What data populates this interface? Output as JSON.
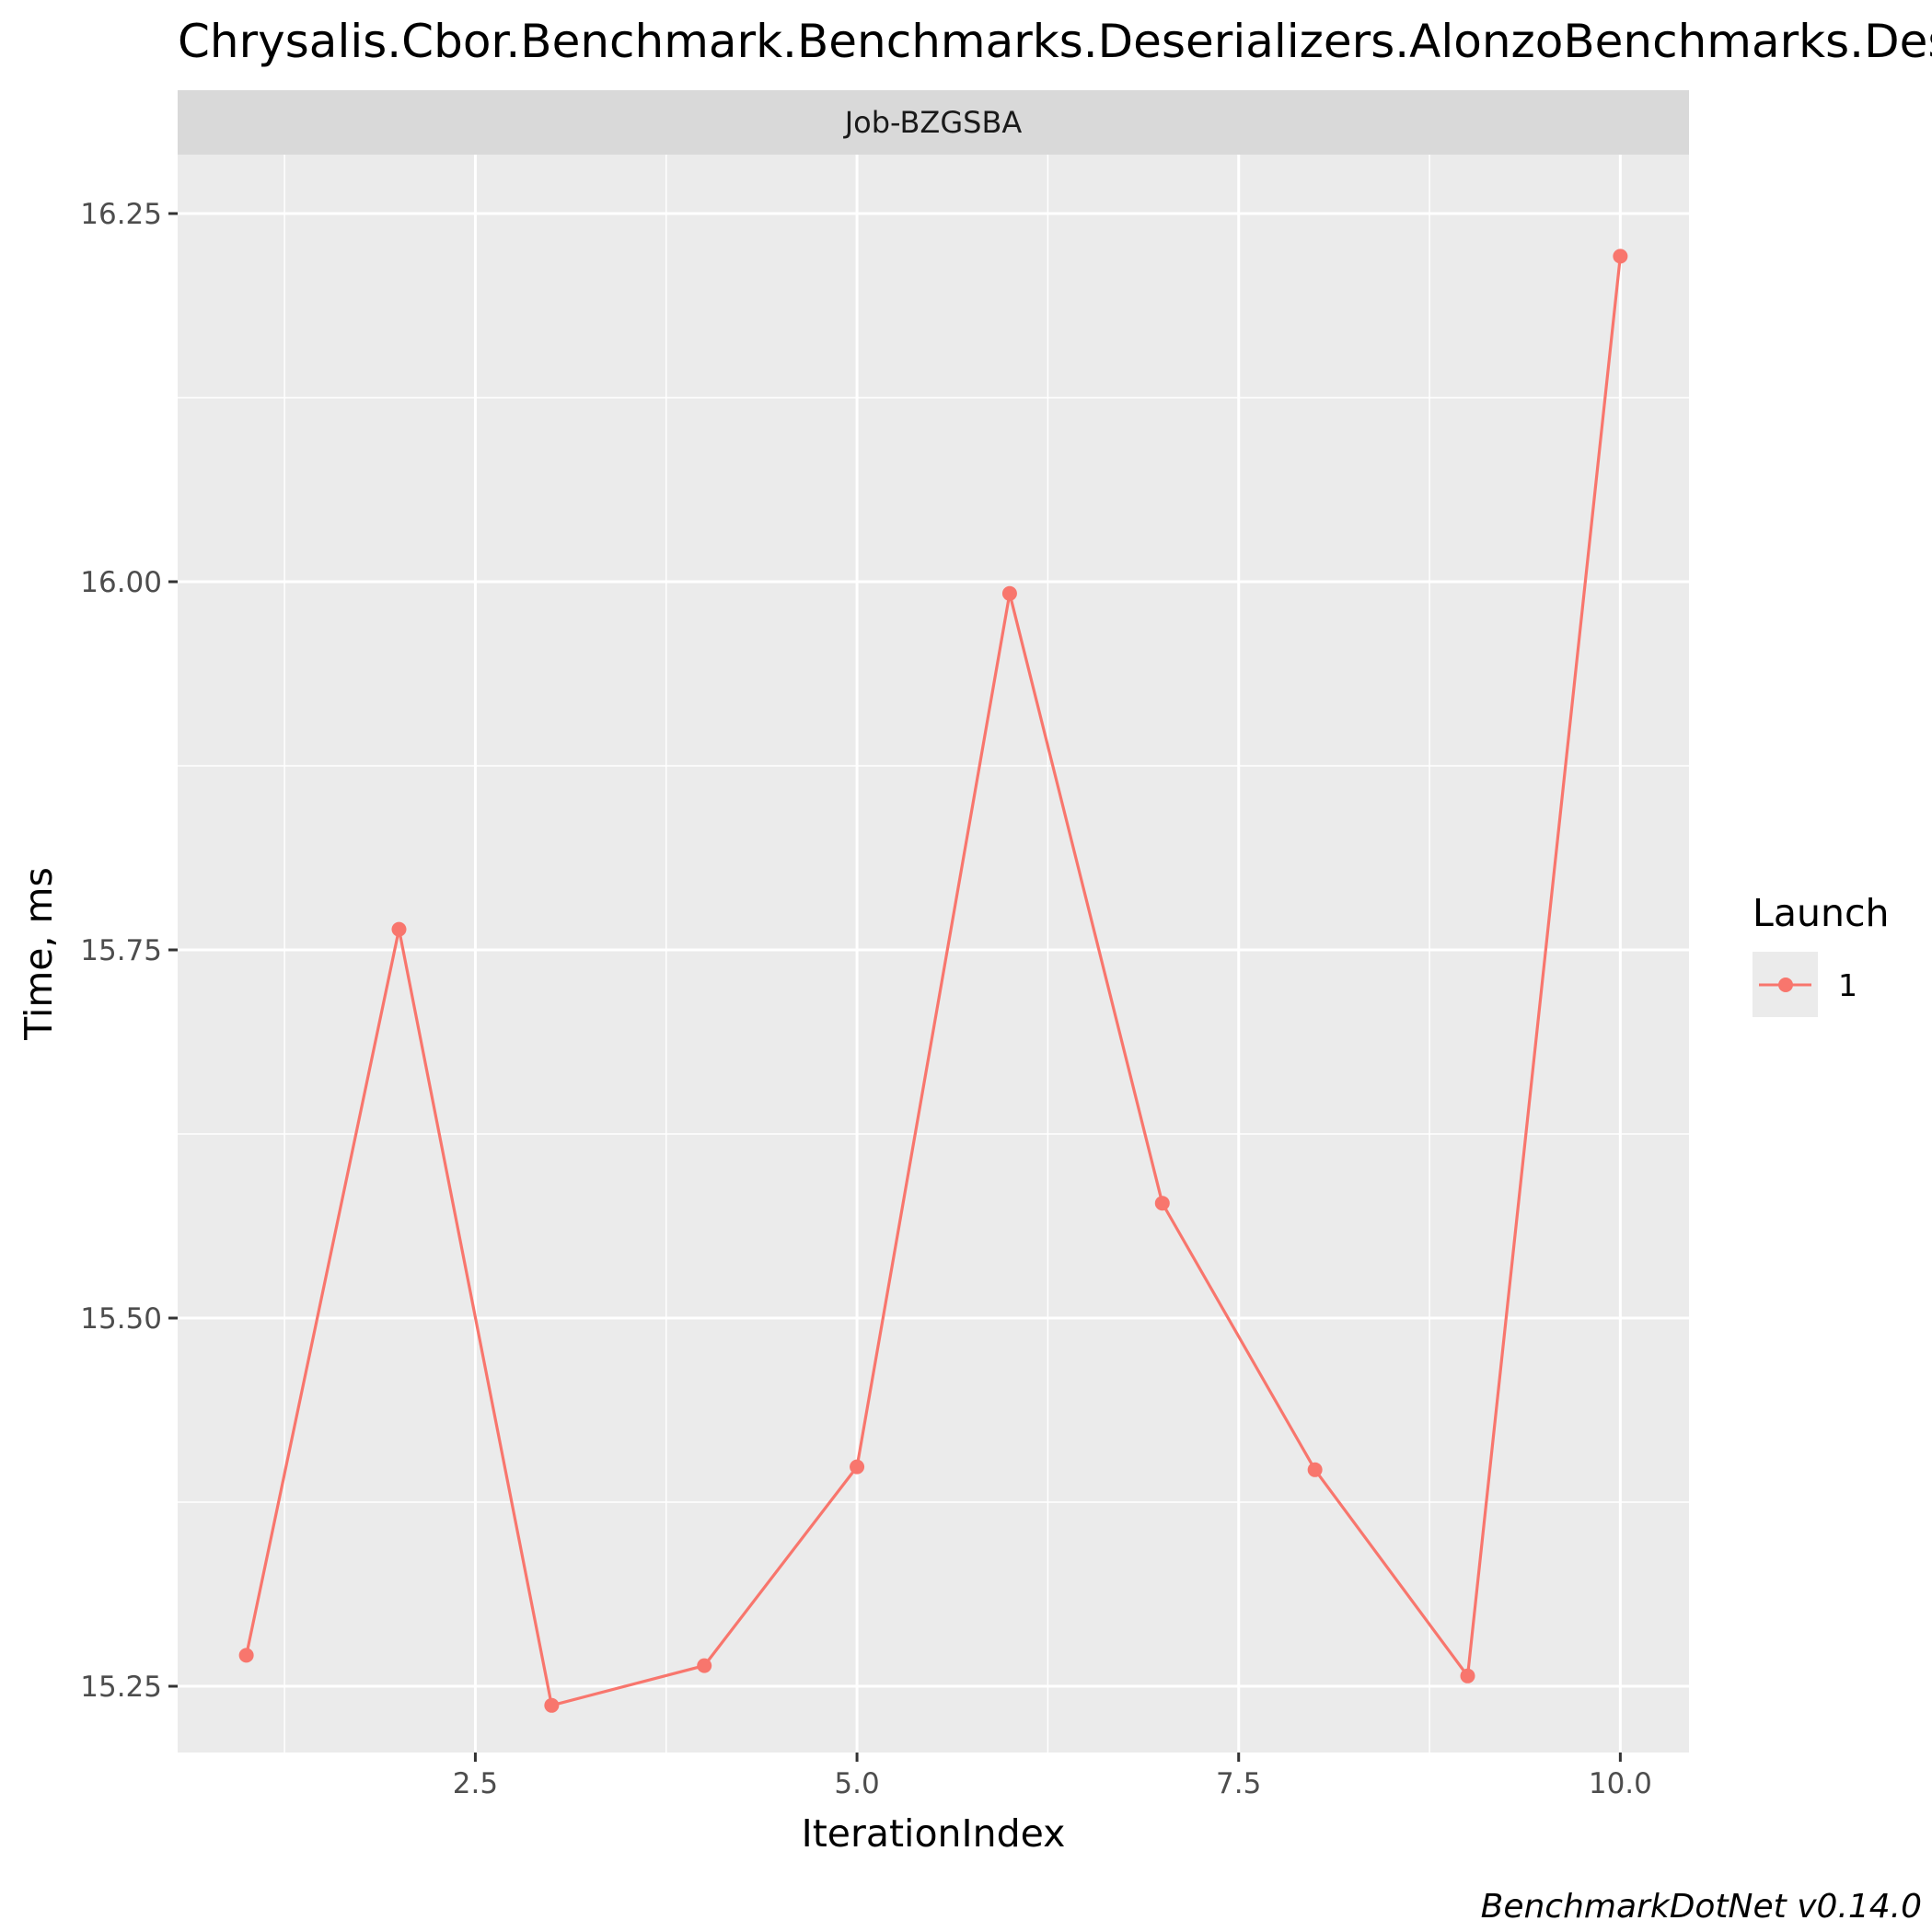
{
  "chart_data": {
    "type": "line",
    "title": "Chrysalis.Cbor.Benchmark.Benchmarks.Deserializers.AlonzoBenchmarks.Deserialize: Job-BZGSBA",
    "facet": "Job-BZGSBA",
    "xlabel": "IterationIndex",
    "ylabel": "Time, ms",
    "caption": "BenchmarkDotNet v0.14.0",
    "xlim": [
      0.55,
      10.45
    ],
    "ylim": [
      15.205,
      16.29
    ],
    "xticks": [
      2.5,
      5.0,
      7.5,
      10.0
    ],
    "xtick_labels": [
      "2.5",
      "5.0",
      "7.5",
      "10.0"
    ],
    "xminor": [
      1.25,
      3.75,
      6.25,
      8.75
    ],
    "yticks": [
      15.25,
      15.5,
      15.75,
      16.0,
      16.25
    ],
    "ytick_labels": [
      "15.25",
      "15.50",
      "15.75",
      "16.00",
      "16.25"
    ],
    "yminor": [
      15.375,
      15.625,
      15.875,
      16.125
    ],
    "grid": true,
    "legend": {
      "title": "Launch",
      "position": "right"
    },
    "series": [
      {
        "name": "1",
        "color": "#F8766D",
        "x": [
          1,
          2,
          3,
          4,
          5,
          6,
          7,
          8,
          9,
          10
        ],
        "y": [
          15.271,
          15.764,
          15.237,
          15.264,
          15.399,
          15.992,
          15.578,
          15.397,
          15.257,
          16.221
        ]
      }
    ]
  }
}
